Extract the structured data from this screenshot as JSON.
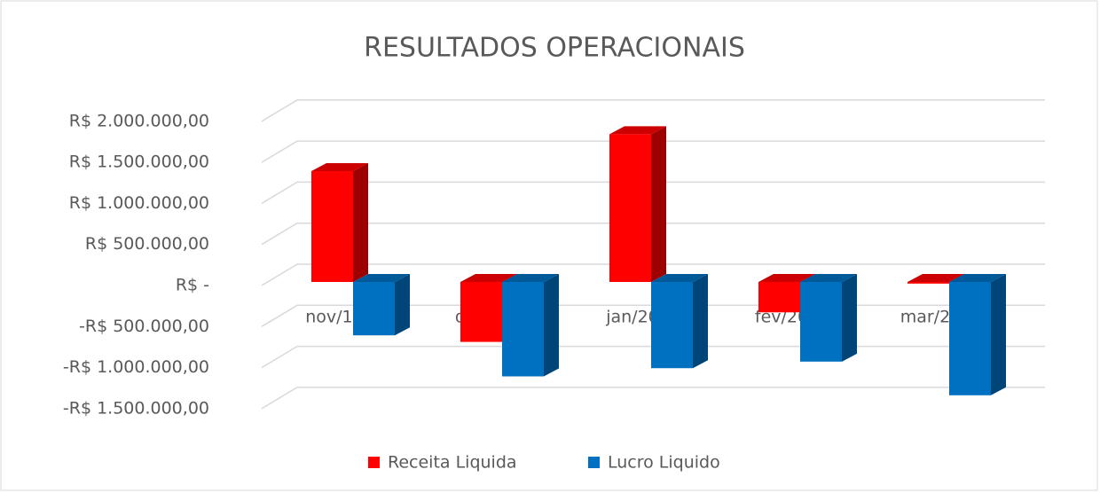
{
  "chart_data": {
    "type": "bar3d",
    "title": "RESULTADOS OPERACIONAIS",
    "categories": [
      "nov/19",
      "dez/19",
      "jan/20",
      "fev/20",
      "mar/20"
    ],
    "series": [
      {
        "name": "Receita Liquida",
        "color": "#ff0000",
        "values": [
          1350000,
          -730000,
          1800000,
          -370000,
          -20000
        ]
      },
      {
        "name": "Lucro Liquido",
        "color": "#0070c0",
        "values": [
          -650000,
          -1150000,
          -1050000,
          -970000,
          -1380000
        ]
      }
    ],
    "ylim": [
      -1500000,
      2000000
    ],
    "yticks": [
      {
        "value": -1500000,
        "label": "-R$ 1.500.000,00"
      },
      {
        "value": -1000000,
        "label": "-R$ 1.000.000,00"
      },
      {
        "value": -500000,
        "label": "-R$ 500.000,00"
      },
      {
        "value": 0,
        "label": "R$ -"
      },
      {
        "value": 500000,
        "label": "R$ 500.000,00"
      },
      {
        "value": 1000000,
        "label": "R$ 1.000.000,00"
      },
      {
        "value": 1500000,
        "label": "R$ 1.500.000,00"
      },
      {
        "value": 2000000,
        "label": "R$ 2.000.000,00"
      }
    ],
    "grid": true,
    "legend": "bottom"
  }
}
